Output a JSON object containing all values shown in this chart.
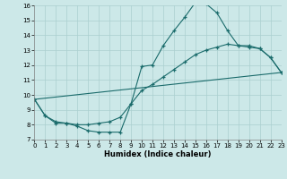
{
  "xlabel": "Humidex (Indice chaleur)",
  "xlim": [
    0,
    23
  ],
  "ylim": [
    7,
    16
  ],
  "xticks": [
    0,
    1,
    2,
    3,
    4,
    5,
    6,
    7,
    8,
    9,
    10,
    11,
    12,
    13,
    14,
    15,
    16,
    17,
    18,
    19,
    20,
    21,
    22,
    23
  ],
  "yticks": [
    7,
    8,
    9,
    10,
    11,
    12,
    13,
    14,
    15,
    16
  ],
  "bg_color": "#cce8e8",
  "line_color": "#1a6b6b",
  "line1_x": [
    0,
    1,
    2,
    3,
    4,
    5,
    6,
    7,
    8,
    9,
    10,
    11,
    12,
    13,
    14,
    15,
    16,
    17,
    18,
    19,
    20,
    21,
    22,
    23
  ],
  "line1_y": [
    9.7,
    8.6,
    8.1,
    8.1,
    7.9,
    7.6,
    7.5,
    7.5,
    7.5,
    9.4,
    11.9,
    12.0,
    13.3,
    14.3,
    15.2,
    16.2,
    16.1,
    15.5,
    14.3,
    13.3,
    13.2,
    13.1,
    12.5,
    11.5
  ],
  "line2_x": [
    0,
    1,
    2,
    3,
    4,
    5,
    6,
    7,
    8,
    9,
    10,
    11,
    12,
    13,
    14,
    15,
    16,
    17,
    18,
    19,
    20,
    21,
    22,
    23
  ],
  "line2_y": [
    9.7,
    8.6,
    8.2,
    8.1,
    8.0,
    8.0,
    8.1,
    8.2,
    8.5,
    9.4,
    10.3,
    10.7,
    11.2,
    11.7,
    12.2,
    12.7,
    13.0,
    13.2,
    13.4,
    13.3,
    13.3,
    13.1,
    12.5,
    11.5
  ],
  "line3_x": [
    0,
    23
  ],
  "line3_y": [
    9.7,
    11.5
  ]
}
